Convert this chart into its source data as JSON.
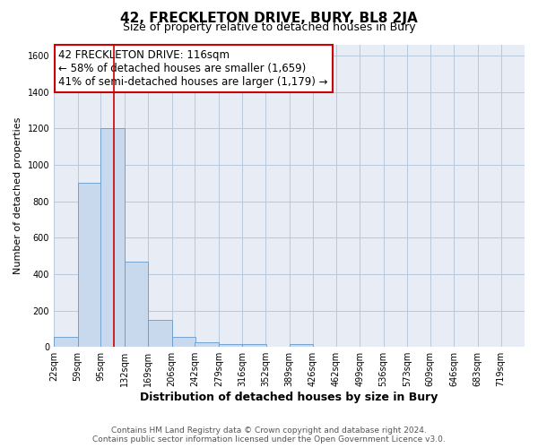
{
  "title": "42, FRECKLETON DRIVE, BURY, BL8 2JA",
  "subtitle": "Size of property relative to detached houses in Bury",
  "xlabel": "Distribution of detached houses by size in Bury",
  "ylabel": "Number of detached properties",
  "bar_color": "#c8d9ed",
  "bar_edge_color": "#6699cc",
  "plot_bg_color": "#e8edf5",
  "fig_bg_color": "#ffffff",
  "grid_color": "#b8c8dc",
  "annotation_box_color": "#ffffff",
  "annotation_box_edge": "#cc0000",
  "vline_color": "#cc0000",
  "vline_x": 116,
  "bar_bins": [
    22,
    59,
    95,
    132,
    169,
    206,
    242,
    279,
    316,
    352,
    389,
    426,
    462,
    499,
    536,
    573,
    609,
    646,
    683,
    719,
    756
  ],
  "bar_heights": [
    55,
    900,
    1200,
    470,
    150,
    55,
    28,
    15,
    15,
    0,
    15,
    0,
    0,
    0,
    0,
    0,
    0,
    0,
    0,
    0
  ],
  "ylim": [
    0,
    1660
  ],
  "yticks": [
    0,
    200,
    400,
    600,
    800,
    1000,
    1200,
    1400,
    1600
  ],
  "annotation_line1": "42 FRECKLETON DRIVE: 116sqm",
  "annotation_line2": "← 58% of detached houses are smaller (1,659)",
  "annotation_line3": "41% of semi-detached houses are larger (1,179) →",
  "footer_line1": "Contains HM Land Registry data © Crown copyright and database right 2024.",
  "footer_line2": "Contains public sector information licensed under the Open Government Licence v3.0.",
  "title_fontsize": 11,
  "subtitle_fontsize": 9,
  "xlabel_fontsize": 9,
  "ylabel_fontsize": 8,
  "tick_fontsize": 7,
  "annotation_fontsize": 8.5,
  "footer_fontsize": 6.5
}
